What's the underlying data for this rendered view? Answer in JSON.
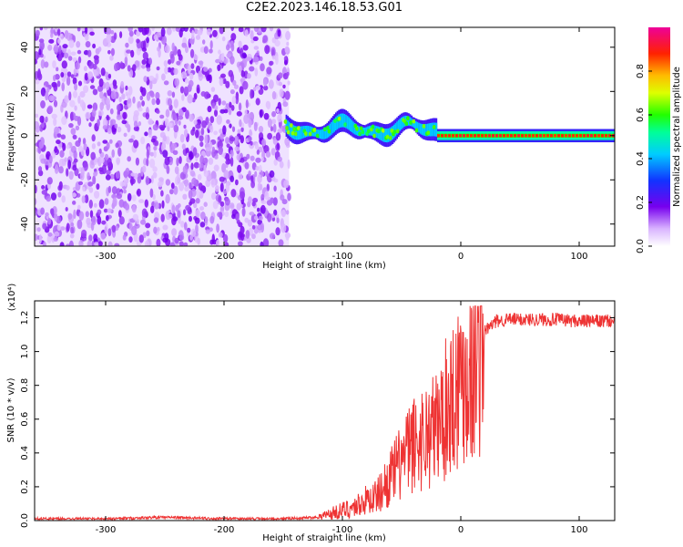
{
  "title": "C2E2.2023.146.18.53.G01",
  "colors": {
    "snr_line": "#ee3333",
    "axis": "#000000"
  },
  "chart_data": [
    {
      "type": "heatmap",
      "xlabel": "Height of straight line (km)",
      "ylabel": "Frequency (Hz)",
      "xlim": [
        -360,
        130
      ],
      "ylim": [
        -50,
        49
      ],
      "xticks": [
        -300,
        -200,
        -100,
        0,
        100
      ],
      "yticks": [
        -40,
        -20,
        0,
        20,
        40
      ],
      "colorbar": {
        "label": "Normalized spectral amplitude",
        "range": [
          0.0,
          1.0
        ],
        "ticks": [
          "0.0",
          "0.2",
          "0.4",
          "0.6",
          "0.8"
        ],
        "colormap": "rainbow (white, violet, blue, cyan, green, yellow, orange, red, magenta)"
      },
      "regions": [
        {
          "x_from": -360,
          "x_to": -145,
          "description": "broadband noise",
          "amplitude": 0.1
        },
        {
          "x_from": -148,
          "x_to": -20,
          "center_freq_hz": 3,
          "half_width_hz": 4,
          "amplitude": 0.55
        },
        {
          "x_from": -20,
          "x_to": 130,
          "center_freq_hz": 0,
          "half_width_hz": 2,
          "amplitude": 0.9
        }
      ]
    },
    {
      "type": "line",
      "xlabel": "Height of straight line (km)",
      "ylabel": "SNR (10 * v/v)",
      "y_scale_label": "(x10⁴)",
      "xlim": [
        -360,
        130
      ],
      "ylim": [
        0,
        1.3
      ],
      "xticks": [
        -300,
        -200,
        -100,
        0,
        100
      ],
      "yticks": [
        "0.0",
        "0.2",
        "0.4",
        "0.6",
        "0.8",
        "1.0",
        "1.2"
      ],
      "series": [
        {
          "x": [
            -360,
            -300,
            -250,
            -200,
            -150,
            -120,
            -110,
            -100,
            -90,
            -80,
            -70,
            -60,
            -50,
            -40,
            -30,
            -20,
            -10,
            0,
            10,
            20,
            30,
            40,
            60,
            80,
            100,
            130
          ],
          "y": [
            0.01,
            0.01,
            0.02,
            0.01,
            0.01,
            0.02,
            0.04,
            0.06,
            0.08,
            0.12,
            0.15,
            0.25,
            0.35,
            0.45,
            0.5,
            0.55,
            0.7,
            0.85,
            0.9,
            1.12,
            1.18,
            1.19,
            1.19,
            1.19,
            1.18,
            1.18
          ]
        }
      ]
    }
  ]
}
